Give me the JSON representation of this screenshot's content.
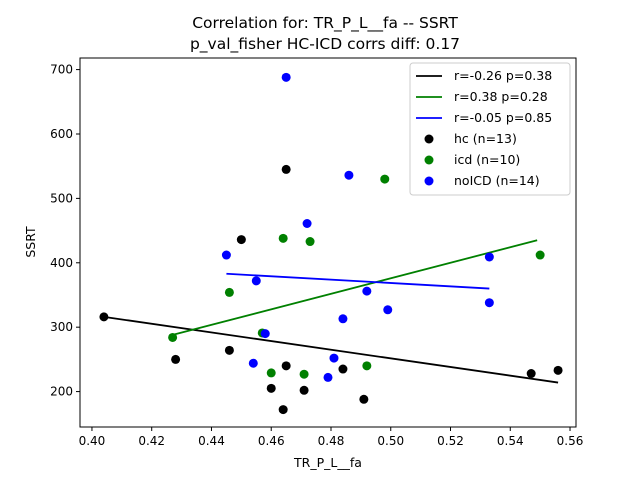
{
  "chart_data": {
    "type": "scatter",
    "title": "Correlation for: TR_P_L__fa -- SSRT",
    "subtitle": "p_val_fisher HC-ICD corrs diff: 0.17",
    "xlabel": "TR_P_L__fa",
    "ylabel": "SSRT",
    "xlim": [
      0.396,
      0.562
    ],
    "ylim": [
      145,
      718
    ],
    "xticks": [
      0.4,
      0.42,
      0.44,
      0.46,
      0.48,
      0.5,
      0.52,
      0.54,
      0.56
    ],
    "xtick_labels": [
      "0.40",
      "0.42",
      "0.44",
      "0.46",
      "0.48",
      "0.50",
      "0.52",
      "0.54",
      "0.56"
    ],
    "yticks": [
      200,
      300,
      400,
      500,
      600,
      700
    ],
    "ytick_labels": [
      "200",
      "300",
      "400",
      "500",
      "600",
      "700"
    ],
    "grid": false,
    "legend_position": "top-right",
    "lines": [
      {
        "name": "r=-0.26 p=0.38",
        "color": "#000000",
        "x": [
          0.404,
          0.556
        ],
        "y": [
          316,
          214
        ]
      },
      {
        "name": "r=0.38 p=0.28",
        "color": "#008000",
        "x": [
          0.427,
          0.549
        ],
        "y": [
          288,
          435
        ]
      },
      {
        "name": "r=-0.05 p=0.85",
        "color": "#0000ff",
        "x": [
          0.445,
          0.533
        ],
        "y": [
          383,
          360
        ]
      }
    ],
    "series": [
      {
        "name": "hc (n=13)",
        "color": "#000000",
        "points": [
          [
            0.404,
            316
          ],
          [
            0.428,
            250
          ],
          [
            0.446,
            264
          ],
          [
            0.45,
            436
          ],
          [
            0.46,
            205
          ],
          [
            0.464,
            172
          ],
          [
            0.465,
            545
          ],
          [
            0.465,
            240
          ],
          [
            0.471,
            202
          ],
          [
            0.484,
            235
          ],
          [
            0.491,
            188
          ],
          [
            0.547,
            228
          ],
          [
            0.556,
            233
          ]
        ]
      },
      {
        "name": "icd (n=10)",
        "color": "#008000",
        "points": [
          [
            0.427,
            284
          ],
          [
            0.446,
            354
          ],
          [
            0.457,
            291
          ],
          [
            0.46,
            229
          ],
          [
            0.464,
            438
          ],
          [
            0.471,
            227
          ],
          [
            0.473,
            433
          ],
          [
            0.492,
            240
          ],
          [
            0.498,
            530
          ],
          [
            0.55,
            412
          ]
        ]
      },
      {
        "name": "noICD (n=14)",
        "color": "#0000ff",
        "points": [
          [
            0.445,
            412
          ],
          [
            0.454,
            244
          ],
          [
            0.455,
            372
          ],
          [
            0.458,
            290
          ],
          [
            0.465,
            688
          ],
          [
            0.472,
            461
          ],
          [
            0.479,
            222
          ],
          [
            0.481,
            252
          ],
          [
            0.484,
            313
          ],
          [
            0.486,
            536
          ],
          [
            0.492,
            356
          ],
          [
            0.499,
            327
          ],
          [
            0.533,
            409
          ],
          [
            0.533,
            338
          ]
        ]
      }
    ]
  }
}
